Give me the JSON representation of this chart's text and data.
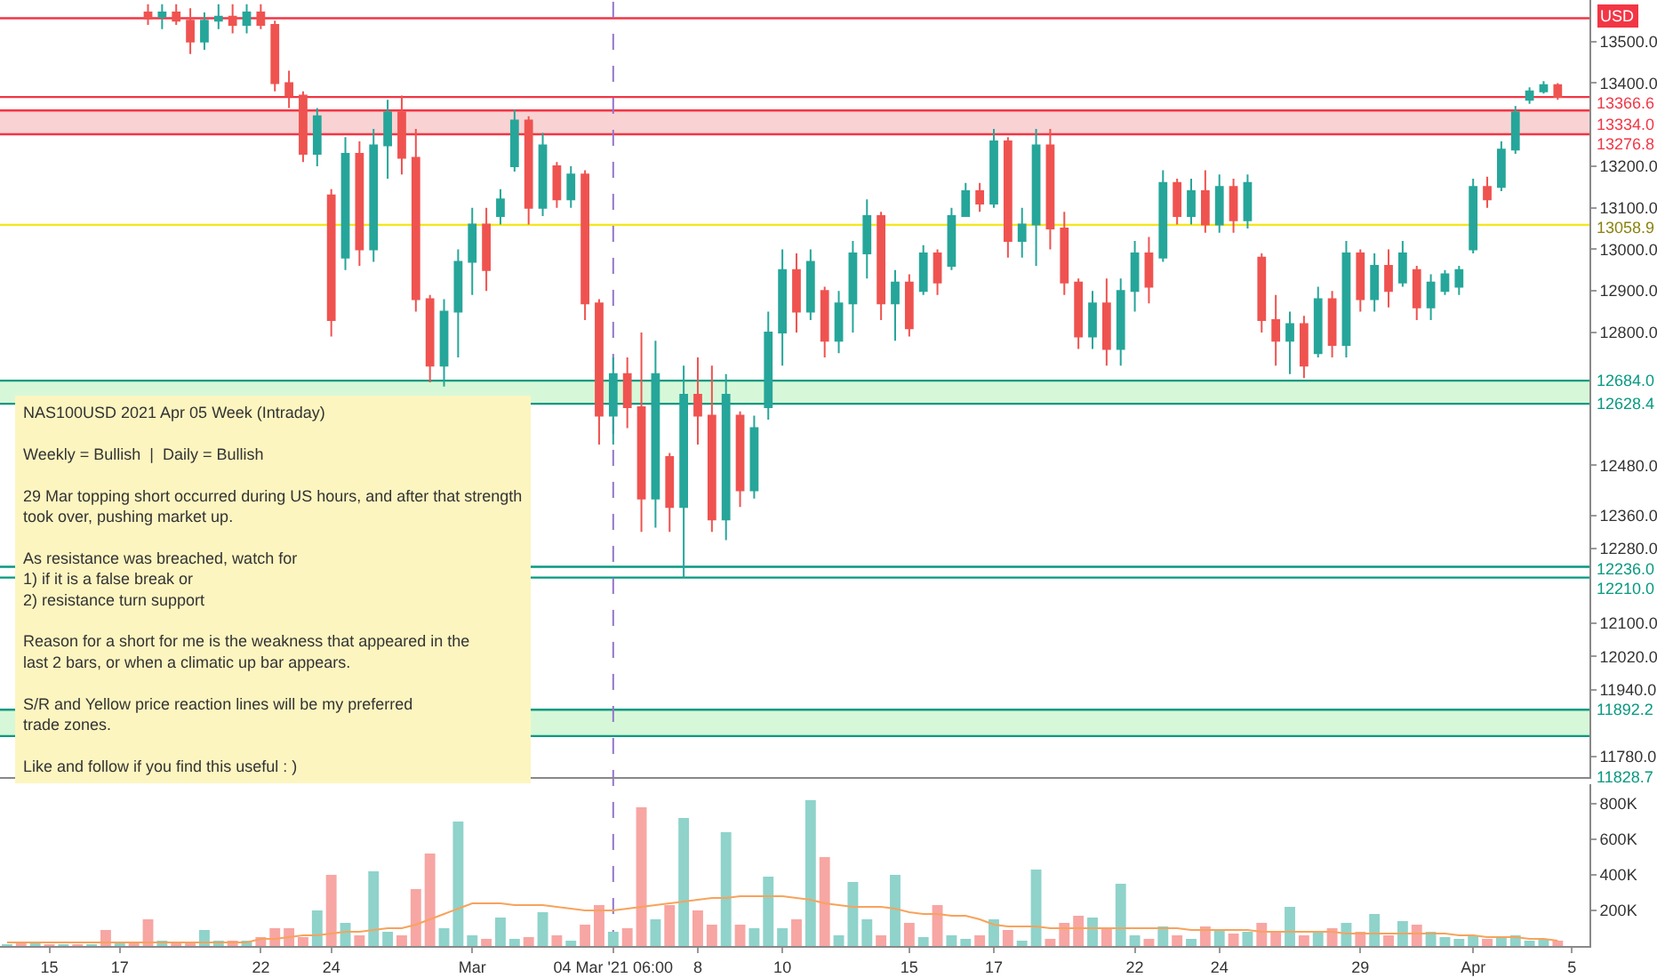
{
  "chart_data": [
    {
      "type": "candlestick",
      "ylabel": "USD",
      "categories": [
        null,
        null,
        null,
        "15",
        null,
        null,
        null,
        null,
        "17",
        null,
        null,
        null,
        null,
        null,
        null,
        null,
        null,
        null,
        "22",
        null,
        null,
        null,
        null,
        "24",
        null,
        null,
        null,
        null,
        null,
        null,
        null,
        null,
        null,
        "Mar",
        null,
        null,
        null,
        null,
        null,
        null,
        null,
        null,
        null,
        "04 Mar '21 06:00",
        null,
        null,
        null,
        null,
        null,
        "8",
        null,
        null,
        null,
        null,
        null,
        "10",
        null,
        null,
        null,
        null,
        null,
        null,
        null,
        null,
        "15",
        null,
        null,
        null,
        null,
        null,
        "17",
        null,
        null,
        null,
        null,
        null,
        null,
        null,
        null,
        null,
        "22",
        null,
        null,
        null,
        null,
        null,
        "24",
        null,
        null,
        null,
        null,
        null,
        null,
        null,
        null,
        null,
        "29",
        null,
        null,
        null,
        null,
        null,
        null,
        null,
        "Apr",
        null,
        null,
        null,
        null,
        null,
        null,
        "5"
      ],
      "ohlc": [
        null,
        null,
        null,
        null,
        null,
        null,
        null,
        null,
        null,
        null,
        [
          13570,
          13590,
          13540,
          13555
        ],
        [
          13560,
          13590,
          13530,
          13570
        ],
        [
          13570,
          13590,
          13540,
          13550
        ],
        [
          13550,
          13580,
          13470,
          13500
        ],
        [
          13500,
          13570,
          13480,
          13550
        ],
        [
          13550,
          13590,
          13530,
          13560
        ],
        [
          13560,
          13590,
          13520,
          13540
        ],
        [
          13540,
          13590,
          13520,
          13570
        ],
        [
          13570,
          13590,
          13530,
          13540
        ],
        [
          13540,
          13550,
          13380,
          13400
        ],
        [
          13400,
          13430,
          13340,
          13370
        ],
        [
          13370,
          13380,
          13210,
          13230
        ],
        [
          13230,
          13340,
          13200,
          13320
        ],
        [
          13130,
          13145,
          12790,
          12830
        ],
        [
          12980,
          13270,
          12950,
          13230
        ],
        [
          13230,
          13260,
          12960,
          13000
        ],
        [
          13000,
          13290,
          12970,
          13250
        ],
        [
          13250,
          13360,
          13170,
          13330
        ],
        [
          13330,
          13370,
          13180,
          13220
        ],
        [
          13220,
          13290,
          12850,
          12880
        ],
        [
          12880,
          12890,
          12680,
          12720
        ],
        [
          12720,
          12880,
          12670,
          12850
        ],
        [
          12850,
          13000,
          12740,
          12970
        ],
        [
          12970,
          13100,
          12890,
          13060
        ],
        [
          13060,
          13100,
          12900,
          12950
        ],
        [
          13080,
          13145,
          13060,
          13120
        ],
        [
          13200,
          13336,
          13187,
          13310
        ],
        [
          13310,
          13320,
          13060,
          13100
        ],
        [
          13100,
          13280,
          13080,
          13250
        ],
        [
          13200,
          13210,
          13100,
          13120
        ],
        [
          13120,
          13200,
          13100,
          13180
        ],
        [
          13180,
          13190,
          12830,
          12870
        ],
        [
          12870,
          12880,
          12530,
          12600
        ],
        [
          12600,
          12740,
          12530,
          12700
        ],
        [
          12700,
          12740,
          12570,
          12620
        ],
        [
          12620,
          12800,
          12320,
          12400
        ],
        [
          12400,
          12780,
          12330,
          12700
        ],
        [
          12500,
          12510,
          12320,
          12380
        ],
        [
          12380,
          12720,
          12210,
          12650
        ],
        [
          12650,
          12740,
          12530,
          12600
        ],
        [
          12600,
          12720,
          12320,
          12350
        ],
        [
          12350,
          12700,
          12300,
          12650
        ],
        [
          12600,
          12610,
          12380,
          12420
        ],
        [
          12420,
          12600,
          12400,
          12570
        ],
        [
          12620,
          12850,
          12590,
          12800
        ],
        [
          12800,
          13000,
          12720,
          12950
        ],
        [
          12950,
          12990,
          12800,
          12850
        ],
        [
          12850,
          13000,
          12830,
          12970
        ],
        [
          12900,
          12910,
          12740,
          12780
        ],
        [
          12780,
          12900,
          12750,
          12870
        ],
        [
          12870,
          13020,
          12800,
          12990
        ],
        [
          12990,
          13120,
          12930,
          13080
        ],
        [
          13080,
          13090,
          12830,
          12870
        ],
        [
          12870,
          12950,
          12780,
          12920
        ],
        [
          12920,
          12940,
          12790,
          12810
        ],
        [
          12900,
          13010,
          12890,
          12990
        ],
        [
          12990,
          13000,
          12890,
          12920
        ],
        [
          12960,
          13100,
          12950,
          13080
        ],
        [
          13080,
          13160,
          13080,
          13140
        ],
        [
          13140,
          13160,
          13090,
          13110
        ],
        [
          13110,
          13290,
          13100,
          13260
        ],
        [
          13260,
          13270,
          12980,
          13020
        ],
        [
          13020,
          13100,
          12980,
          13060
        ],
        [
          13060,
          13290,
          12960,
          13250
        ],
        [
          13250,
          13290,
          13000,
          13050
        ],
        [
          13050,
          13090,
          12890,
          12920
        ],
        [
          12920,
          12930,
          12760,
          12790
        ],
        [
          12790,
          12900,
          12760,
          12870
        ],
        [
          12870,
          12930,
          12720,
          12760
        ],
        [
          12760,
          12930,
          12720,
          12900
        ],
        [
          12900,
          13020,
          12850,
          12990
        ],
        [
          12990,
          13030,
          12870,
          12910
        ],
        [
          12980,
          13190,
          12970,
          13160
        ],
        [
          13160,
          13170,
          13060,
          13080
        ],
        [
          13080,
          13170,
          13060,
          13140
        ],
        [
          13140,
          13190,
          13040,
          13060
        ],
        [
          13060,
          13180,
          13040,
          13150
        ],
        [
          13150,
          13170,
          13040,
          13070
        ],
        [
          13070,
          13180,
          13050,
          13160
        ],
        [
          12980,
          12990,
          12800,
          12830
        ],
        [
          12830,
          12890,
          12720,
          12780
        ],
        [
          12780,
          12850,
          12700,
          12820
        ],
        [
          12820,
          12840,
          12690,
          12720
        ],
        [
          12750,
          12910,
          12740,
          12880
        ],
        [
          12880,
          12900,
          12740,
          12770
        ],
        [
          12770,
          13020,
          12740,
          12990
        ],
        [
          12990,
          13000,
          12850,
          12880
        ],
        [
          12880,
          12990,
          12850,
          12960
        ],
        [
          12960,
          13000,
          12860,
          12900
        ],
        [
          12920,
          13020,
          12910,
          12990
        ],
        [
          12950,
          12960,
          12830,
          12860
        ],
        [
          12860,
          12940,
          12830,
          12920
        ],
        [
          12900,
          12950,
          12890,
          12940
        ],
        [
          12910,
          12960,
          12890,
          12950
        ],
        [
          13000,
          13170,
          12990,
          13150
        ],
        [
          13150,
          13175,
          13100,
          13120
        ],
        [
          13150,
          13260,
          13140,
          13240
        ],
        [
          13240,
          13345,
          13230,
          13330
        ],
        [
          13360,
          13390,
          13350,
          13380
        ],
        [
          13380,
          13405,
          13375,
          13395
        ],
        [
          13395,
          13400,
          13360,
          13366.6
        ],
        null
      ],
      "ylim": [
        11730,
        13600
      ],
      "yticks": [
        {
          "value": 13500,
          "label": "13500.0"
        },
        {
          "value": 13400,
          "label": "13400.0"
        },
        {
          "value": 13200,
          "label": "13200.0"
        },
        {
          "value": 13100,
          "label": "13100.0"
        },
        {
          "value": 13000,
          "label": "13000.0"
        },
        {
          "value": 12900,
          "label": "12900.0"
        },
        {
          "value": 12800,
          "label": "12800.0"
        },
        {
          "value": 12480,
          "label": "12480.0"
        },
        {
          "value": 12360,
          "label": "12360.0"
        },
        {
          "value": 12280,
          "label": "12280.0"
        },
        {
          "value": 12100,
          "label": "12100.0"
        },
        {
          "value": 12020,
          "label": "12020.0"
        },
        {
          "value": 11940,
          "label": "11940.0"
        },
        {
          "value": 11780,
          "label": "11780.0"
        }
      ],
      "tick_labels": "y",
      "ref_lines": [
        {
          "axis": "y",
          "value": 13556,
          "label": null,
          "color": "#f23645",
          "line_style": "solid"
        },
        {
          "axis": "y",
          "value": 13366.6,
          "label": "13366.6",
          "color": "#f23645",
          "line_style": "solid"
        },
        {
          "axis": "y",
          "value": 13334.0,
          "label": "13334.0",
          "color": "#f23645",
          "line_style": "solid"
        },
        {
          "axis": "y",
          "value": 13276.8,
          "label": "13276.8",
          "color": "#f23645",
          "line_style": "solid"
        },
        {
          "axis": "y",
          "value": 13058.9,
          "label": "13058.9",
          "color": "#f5e61b",
          "line_style": "solid"
        },
        {
          "axis": "y",
          "value": 12684.0,
          "label": "12684.0",
          "color": "#089981",
          "line_style": "solid"
        },
        {
          "axis": "y",
          "value": 12628.4,
          "label": "12628.4",
          "color": "#089981",
          "line_style": "solid"
        },
        {
          "axis": "y",
          "value": 12236.0,
          "label": "12236.0",
          "color": "#089981",
          "line_style": "solid"
        },
        {
          "axis": "y",
          "value": 12210.0,
          "label": "12210.0",
          "color": "#089981",
          "line_style": "solid"
        },
        {
          "axis": "y",
          "value": 11892.2,
          "label": "11892.2",
          "color": "#089981",
          "line_style": "solid"
        },
        {
          "axis": "y",
          "value": 11828.7,
          "label": "11828.7",
          "color": "#089981",
          "line_style": "solid"
        },
        {
          "axis": "x",
          "value": "04 Mar '21 06:00",
          "label": null,
          "color": "#9575cd",
          "line_style": "dashed"
        }
      ],
      "bands": [
        {
          "axis": "y",
          "from": 13276.8,
          "to": 13334.0,
          "label": null,
          "color": "#f7c4c4"
        },
        {
          "axis": "y",
          "from": 12628.4,
          "to": 12684.0,
          "label": null,
          "color": "#c9f5cb"
        },
        {
          "axis": "y",
          "from": 11828.7,
          "to": 11892.2,
          "label": null,
          "color": "#c9f5cb"
        }
      ],
      "annotations": [
        "NAS100USD 2021 Apr 05 Week (Intraday)\n\nWeekly = Bullish  |  Daily = Bullish\n\n29 Mar topping short occurred during US hours, and after that strength\ntook over, pushing market up.\n\nAs resistance was breached, watch for\n1) if it is a false break or\n2) resistance turn support\n\nReason for a short for me is the weakness that appeared in the\nlast 2 bars, or when a climatic up bar appears.\n\nS/R and Yellow price reaction lines will be my preferred\ntrade zones.\n\nLike and follow if you find this useful : )"
      ],
      "grid": false,
      "legend": false
    },
    {
      "type": "bar",
      "categories": [
        null,
        null,
        null,
        "15",
        null,
        null,
        null,
        null,
        "17",
        null,
        null,
        null,
        null,
        null,
        null,
        null,
        null,
        null,
        "22",
        null,
        null,
        null,
        null,
        "24",
        null,
        null,
        null,
        null,
        null,
        null,
        null,
        null,
        null,
        "Mar",
        null,
        null,
        null,
        null,
        null,
        null,
        null,
        null,
        null,
        "04 Mar '21 06:00",
        null,
        null,
        null,
        null,
        null,
        "8",
        null,
        null,
        null,
        null,
        null,
        "10",
        null,
        null,
        null,
        null,
        null,
        null,
        null,
        null,
        "15",
        null,
        null,
        null,
        null,
        null,
        "17",
        null,
        null,
        null,
        null,
        null,
        null,
        null,
        null,
        null,
        "22",
        null,
        null,
        null,
        null,
        null,
        "24",
        null,
        null,
        null,
        null,
        null,
        null,
        null,
        null,
        null,
        "29",
        null,
        null,
        null,
        null,
        null,
        null,
        null,
        "Apr",
        null,
        null,
        null,
        null,
        null,
        null,
        "5"
      ],
      "series": [
        {
          "type": "bar",
          "values": [
            10,
            20,
            20,
            10,
            10,
            10,
            10,
            90,
            20,
            20,
            150,
            30,
            20,
            20,
            90,
            30,
            30,
            30,
            50,
            100,
            100,
            50,
            200,
            400,
            130,
            60,
            420,
            80,
            60,
            320,
            520,
            100,
            700,
            60,
            40,
            160,
            40,
            50,
            190,
            60,
            30,
            120,
            230,
            80,
            100,
            780,
            150,
            230,
            720,
            200,
            120,
            640,
            120,
            100,
            390,
            100,
            150,
            820,
            500,
            60,
            360,
            150,
            60,
            400,
            130,
            50,
            230,
            60,
            40,
            60,
            150,
            90,
            30,
            430,
            40,
            130,
            170,
            160,
            100,
            350,
            60,
            40,
            110,
            60,
            40,
            110,
            90,
            70,
            80,
            130,
            80,
            220,
            60,
            80,
            100,
            130,
            80,
            180,
            60,
            140,
            120,
            80,
            50,
            40,
            60,
            40,
            50,
            60,
            30,
            40,
            30,
            null
          ],
          "colors": [
            "#8fd3cb",
            "#f7a6a3",
            "#8fd3cb",
            "#f7a6a3",
            "#8fd3cb",
            "#f7a6a3",
            "#8fd3cb",
            "#f7a6a3",
            "#8fd3cb",
            "#f7a6a3",
            "#f7a6a3",
            "#8fd3cb",
            "#f7a6a3",
            "#f7a6a3",
            "#8fd3cb",
            "#8fd3cb",
            "#f7a6a3",
            "#8fd3cb",
            "#f7a6a3",
            "#f7a6a3",
            "#f7a6a3",
            "#f7a6a3",
            "#8fd3cb",
            "#f7a6a3",
            "#8fd3cb",
            "#f7a6a3",
            "#8fd3cb",
            "#8fd3cb",
            "#f7a6a3",
            "#f7a6a3",
            "#f7a6a3",
            "#8fd3cb",
            "#8fd3cb",
            "#8fd3cb",
            "#f7a6a3",
            "#8fd3cb",
            "#8fd3cb",
            "#f7a6a3",
            "#8fd3cb",
            "#f7a6a3",
            "#8fd3cb",
            "#f7a6a3",
            "#f7a6a3",
            "#8fd3cb",
            "#f7a6a3",
            "#f7a6a3",
            "#8fd3cb",
            "#f7a6a3",
            "#8fd3cb",
            "#f7a6a3",
            "#f7a6a3",
            "#8fd3cb",
            "#f7a6a3",
            "#8fd3cb",
            "#8fd3cb",
            "#8fd3cb",
            "#f7a6a3",
            "#8fd3cb",
            "#f7a6a3",
            "#8fd3cb",
            "#8fd3cb",
            "#8fd3cb",
            "#f7a6a3",
            "#8fd3cb",
            "#f7a6a3",
            "#8fd3cb",
            "#f7a6a3",
            "#8fd3cb",
            "#8fd3cb",
            "#f7a6a3",
            "#8fd3cb",
            "#f7a6a3",
            "#8fd3cb",
            "#8fd3cb",
            "#f7a6a3",
            "#f7a6a3",
            "#f7a6a3",
            "#8fd3cb",
            "#f7a6a3",
            "#8fd3cb",
            "#8fd3cb",
            "#f7a6a3",
            "#8fd3cb",
            "#f7a6a3",
            "#8fd3cb",
            "#f7a6a3",
            "#8fd3cb",
            "#f7a6a3",
            "#8fd3cb",
            "#f7a6a3",
            "#f7a6a3",
            "#8fd3cb",
            "#f7a6a3",
            "#8fd3cb",
            "#f7a6a3",
            "#8fd3cb",
            "#f7a6a3",
            "#8fd3cb",
            "#f7a6a3",
            "#8fd3cb",
            "#f7a6a3",
            "#8fd3cb",
            "#8fd3cb",
            "#8fd3cb",
            "#8fd3cb",
            "#f7a6a3",
            "#8fd3cb",
            "#8fd3cb",
            "#8fd3cb",
            "#8fd3cb",
            "#f7a6a3",
            "#8fd3cb"
          ]
        },
        {
          "type": "line",
          "color": "#f7a35c",
          "values": [
            20,
            20,
            20,
            20,
            20,
            20,
            20,
            20,
            20,
            20,
            20,
            20,
            20,
            20,
            20,
            20,
            20,
            20,
            40,
            40,
            50,
            60,
            60,
            70,
            80,
            80,
            90,
            100,
            100,
            120,
            150,
            180,
            210,
            240,
            240,
            240,
            230,
            230,
            230,
            220,
            210,
            200,
            200,
            200,
            210,
            220,
            230,
            240,
            250,
            260,
            270,
            270,
            280,
            280,
            280,
            280,
            270,
            260,
            240,
            230,
            220,
            220,
            220,
            210,
            190,
            180,
            180,
            170,
            170,
            150,
            120,
            110,
            110,
            110,
            100,
            100,
            100,
            100,
            100,
            100,
            100,
            100,
            100,
            100,
            90,
            90,
            90,
            90,
            90,
            80,
            80,
            80,
            80,
            80,
            80,
            70,
            70,
            70,
            70,
            70,
            70,
            70,
            70,
            60,
            60,
            50,
            50,
            50,
            40,
            40,
            30,
            null
          ]
        }
      ],
      "ylim": [
        0,
        910
      ],
      "yticks": [
        {
          "value": 200,
          "label": "200K"
        },
        {
          "value": 400,
          "label": "400K"
        },
        {
          "value": 600,
          "label": "600K"
        },
        {
          "value": 800,
          "label": "800K"
        }
      ],
      "grid": false,
      "legend": false
    }
  ]
}
